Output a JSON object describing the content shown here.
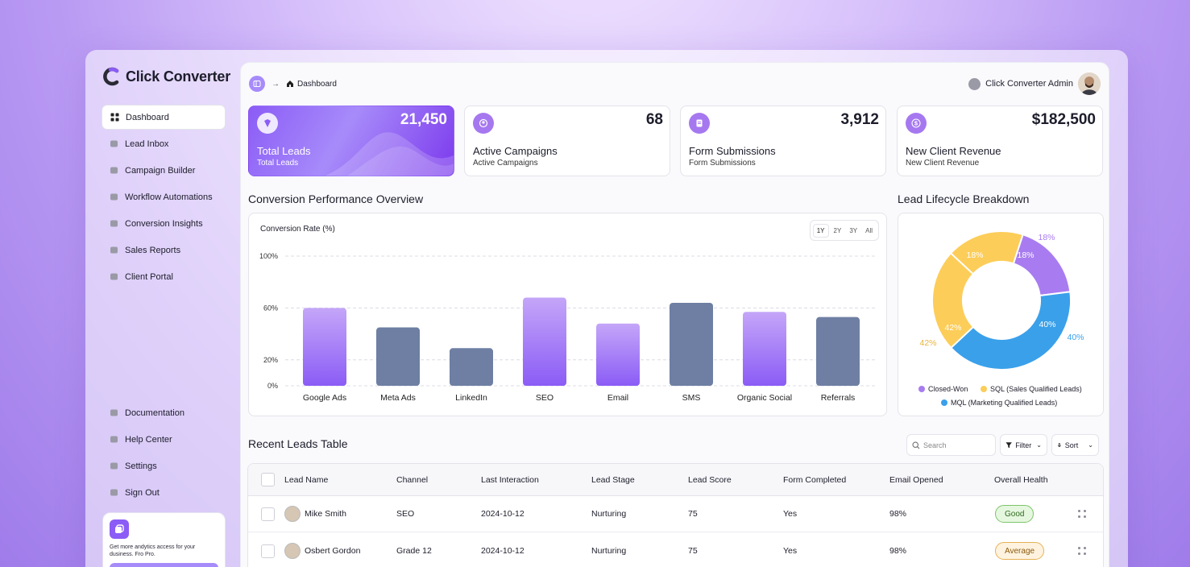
{
  "brand": {
    "name": "Click Converter",
    "accent": "#8b5cf6"
  },
  "sidebar": {
    "items": [
      {
        "label": "Dashboard",
        "icon": "grid-icon",
        "active": true
      },
      {
        "label": "Lead Inbox",
        "icon": "users-icon"
      },
      {
        "label": "Campaign Builder",
        "icon": "layers-icon"
      },
      {
        "label": "Workflow Automations",
        "icon": "workflow-icon"
      },
      {
        "label": "Conversion Insights",
        "icon": "pie-icon"
      },
      {
        "label": "Sales Reports",
        "icon": "report-icon"
      },
      {
        "label": "Client Portal",
        "icon": "portal-icon"
      }
    ],
    "bottom": [
      {
        "label": "Documentation",
        "icon": "doc-icon"
      },
      {
        "label": "Help Center",
        "icon": "help-icon"
      },
      {
        "label": "Settings",
        "icon": "gear-icon"
      },
      {
        "label": "Sign Out",
        "icon": "signout-icon"
      }
    ],
    "promo": {
      "text": "Get more andytics access for your dusiness. Fro Pro."
    }
  },
  "header": {
    "breadcrumb": "Dashboard",
    "user_name": "Click Converter Admin"
  },
  "kpis": [
    {
      "value": "21,450",
      "title": "Total Leads",
      "subtitle": "Total Leads"
    },
    {
      "value": "68",
      "title": "Active Campaigns",
      "subtitle": "Active Campaigns"
    },
    {
      "value": "3,912",
      "title": "Form Submissions",
      "subtitle": "Form Submissions"
    },
    {
      "value": "$182,500",
      "title": "New Client Revenue",
      "subtitle": "New Client Revenue"
    }
  ],
  "conversion": {
    "section_title": "Conversion Performance Overview",
    "chart_label": "Conversion Rate (%)",
    "ranges": [
      "1Y",
      "2Y",
      "3Y",
      "All"
    ],
    "active_range": "1Y"
  },
  "lifecycle": {
    "section_title": "Lead Lifecycle Breakdown"
  },
  "chart_data": [
    {
      "type": "bar",
      "title": "Conversion Rate (%)",
      "categories": [
        "Google Ads",
        "Meta Ads",
        "LinkedIn",
        "SEO",
        "Email",
        "SMS",
        "Organic Social",
        "Referrals"
      ],
      "values": [
        60,
        45,
        29,
        68,
        48,
        64,
        57,
        53
      ],
      "bar_colors": [
        "#9d6ff2",
        "#6e7fa3",
        "#6e7fa3",
        "#9d6ff2",
        "#9d6ff2",
        "#6e7fa3",
        "#9d6ff2",
        "#6e7fa3"
      ],
      "yticks": [
        "0%",
        "20%",
        "60%",
        "100%"
      ],
      "ylim": [
        0,
        100
      ],
      "grid": true
    },
    {
      "type": "pie",
      "donut": true,
      "slices": [
        {
          "label": "Closed-Won",
          "value": 18,
          "color": "#a87cf0",
          "text": "18%"
        },
        {
          "label": "MQL (Marketing Qualified Leads)",
          "value": 40,
          "color": "#3aa0ea",
          "text": "40%"
        },
        {
          "label": "SQL (Sales Qualified Leads)",
          "value": 42,
          "color": "#fccd59",
          "text": "42%"
        }
      ],
      "extra_inner_label": "18%",
      "legend": [
        "Closed-Won",
        "SQL (Sales Qualified Leads)",
        "MQL (Marketing Qualified Leads)"
      ],
      "legend_position": "bottom"
    }
  ],
  "table": {
    "title": "Recent Leads Table",
    "search_placeholder": "Search",
    "filter_label": "Filter",
    "sort_label": "Sort",
    "columns": [
      "Lead Name",
      "Channel",
      "Last Interaction",
      "Lead Stage",
      "Lead Score",
      "Form Completed",
      "Email Opened",
      "Overall Health"
    ],
    "rows": [
      {
        "name": "Mike Smith",
        "channel": "SEO",
        "last": "2024-10-12",
        "stage": "Nurturing",
        "score": "75",
        "form": "Yes",
        "email": "98%",
        "health": "Good"
      },
      {
        "name": "Osbert Gordon",
        "channel": "Grade 12",
        "last": "2024-10-12",
        "stage": "Nurturing",
        "score": "75",
        "form": "Yes",
        "email": "98%",
        "health": "Average"
      }
    ]
  }
}
